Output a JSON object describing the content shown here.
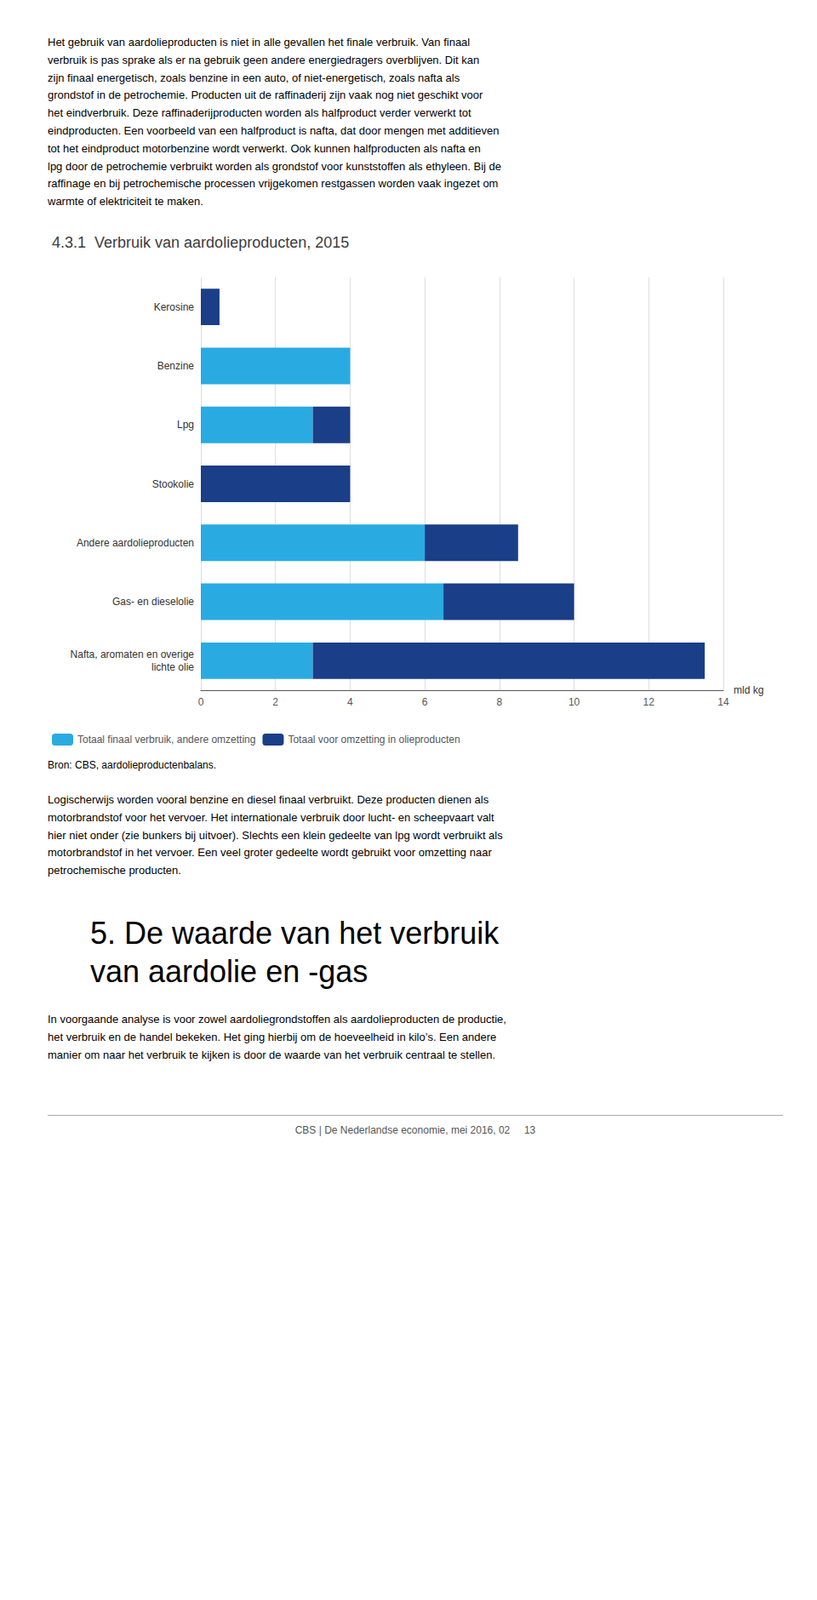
{
  "chart_data": {
    "type": "bar",
    "orientation": "horizontal",
    "stacked": true,
    "title": "4.3.1  Verbruik van aardolieproducten, 2015",
    "categories": [
      "Kerosine",
      "Benzine",
      "Lpg",
      "Stookolie",
      "Andere aardolieproducten",
      "Gas- en dieselolie",
      "Nafta, aromaten en overige\nlichte olie"
    ],
    "series": [
      {
        "name": "Totaal finaal verbruik, andere omzetting",
        "color": "#29ABE2",
        "values": [
          0.0,
          4.0,
          3.0,
          0.0,
          6.0,
          6.5,
          3.0
        ]
      },
      {
        "name": "Totaal voor omzetting in olieproducten",
        "color": "#1A3E87",
        "values": [
          0.5,
          0.0,
          1.0,
          4.0,
          2.5,
          3.5,
          10.5
        ]
      }
    ],
    "xlabel": "mld kg",
    "xlim": [
      0,
      14
    ],
    "xticks": [
      0,
      2,
      4,
      6,
      8,
      10,
      12,
      14
    ],
    "grid": true,
    "legend": "bottom",
    "annotations": [
      "Het gebruik van aardolieproducten is niet in alle gevallen het finale verbruik. Van finaal\nverbruik is pas sprake als er na gebruik geen andere energiedragers overblijven. Dit kan\nzijn finaal energetisch, zoals benzine in een auto, of niet-energetisch, zoals nafta als\ngrondstof in de petrochemie. Producten uit de raffinaderij zijn vaak nog niet geschikt voor\nhet eindverbruik. Deze raffinaderijproducten worden als halfproduct verder verwerkt tot\neindproducten. Een voorbeeld van een halfproduct is nafta, dat door mengen met additieven\ntot het eindproduct motorbenzine wordt verwerkt. Ook kunnen halfproducten als nafta en\nlpg door de petrochemie verbruikt worden als grondstof voor kunststoffen als ethyleen. Bij de\nraffinage en bij petrochemische processen vrijgekomen restgassen worden vaak ingezet om\nwarmte of elektriciteit te maken.",
      "Bron: CBS, aardolieproductenbalans.",
      "Logischerwijs worden vooral benzine en diesel finaal verbruikt. Deze producten dienen als\nmotorbrandstof voor het vervoer. Het internationale verbruik door lucht- en scheepvaart valt\nhier niet onder (zie bunkers bij uitvoer). Slechts een klein gedeelte van lpg wordt verbruikt als\nmotorbrandstof in het vervoer. Een veel groter gedeelte wordt gebruikt voor omzetting naar\npetrochemische producten.",
      "5.  De waarde van het verbruik",
      "van aardolie en -gas",
      "In voorgaande analyse is voor zowel aardoliegrondstoffen als aardolieproducten de productie,\nhet verbruik en de handel bekeken. Het ging hierbij om de hoeveelheid in kilo’s. Een andere\nmanier om naar het verbruik te kijken is door de waarde van het verbruik centraal te stellen.",
      "CBS | De Nederlandse economie, mei 2016, 02     13"
    ]
  }
}
